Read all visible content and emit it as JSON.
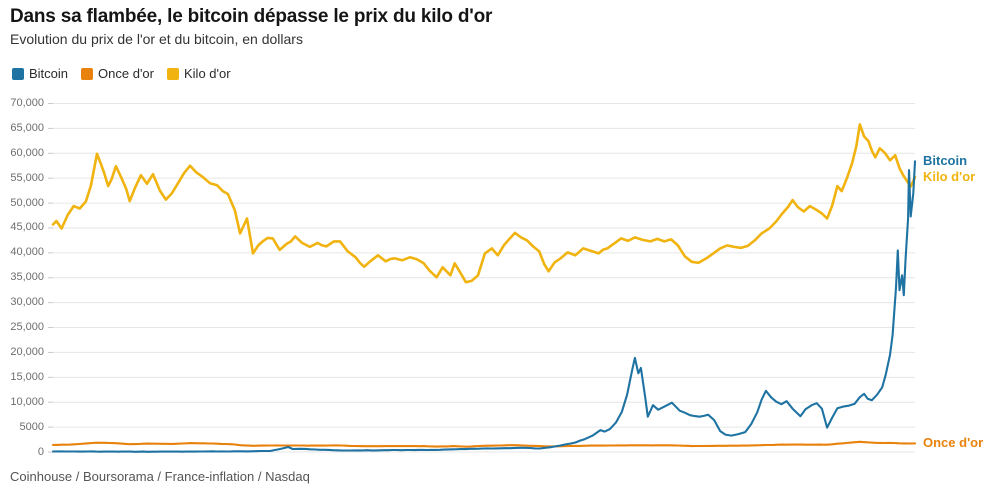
{
  "source": "Coinhouse / Boursorama / France-inflation / Nasdaq",
  "chart_data": {
    "type": "line",
    "title": "Dans sa flambée, le bitcoin dépasse le prix du kilo d'or",
    "subtitle": "Evolution du prix de l'or et du bitcoin, en dollars",
    "unit": "dollars",
    "legend_position": "top-left",
    "grid": "horizontal",
    "ylim": [
      0,
      70000
    ],
    "y_ticks": [
      {
        "value": 0,
        "label": "0"
      },
      {
        "value": 5000,
        "label": "5000"
      },
      {
        "value": 10000,
        "label": "10,000"
      },
      {
        "value": 15000,
        "label": "15,000"
      },
      {
        "value": 20000,
        "label": "20,000"
      },
      {
        "value": 25000,
        "label": "25,000"
      },
      {
        "value": 30000,
        "label": "30,000"
      },
      {
        "value": 35000,
        "label": "35,000"
      },
      {
        "value": 40000,
        "label": "40,000"
      },
      {
        "value": 45000,
        "label": "45,000"
      },
      {
        "value": 50000,
        "label": "50,000"
      },
      {
        "value": 55000,
        "label": "55,000"
      },
      {
        "value": 60000,
        "label": "60,000"
      },
      {
        "value": 65000,
        "label": "65,000"
      },
      {
        "value": 70000,
        "label": "70,000"
      }
    ],
    "x_axis_labels": [],
    "x_unit": "fraction of plotted time range (no x tick labels shown in chart)",
    "series": [
      {
        "name": "Bitcoin",
        "color": "#1f73a3",
        "end_value": 58400,
        "points": [
          [
            0.0,
            100
          ],
          [
            0.06,
            80
          ],
          [
            0.12,
            60
          ],
          [
            0.17,
            100
          ],
          [
            0.23,
            150
          ],
          [
            0.252,
            200
          ],
          [
            0.266,
            700
          ],
          [
            0.273,
            1000
          ],
          [
            0.278,
            600
          ],
          [
            0.287,
            650
          ],
          [
            0.31,
            450
          ],
          [
            0.345,
            300
          ],
          [
            0.379,
            350
          ],
          [
            0.414,
            400
          ],
          [
            0.449,
            450
          ],
          [
            0.484,
            650
          ],
          [
            0.519,
            750
          ],
          [
            0.542,
            850
          ],
          [
            0.565,
            700
          ],
          [
            0.582,
            1100
          ],
          [
            0.594,
            1500
          ],
          [
            0.606,
            1900
          ],
          [
            0.617,
            2600
          ],
          [
            0.626,
            3300
          ],
          [
            0.635,
            4400
          ],
          [
            0.64,
            4100
          ],
          [
            0.646,
            4600
          ],
          [
            0.653,
            5900
          ],
          [
            0.66,
            8100
          ],
          [
            0.666,
            11500
          ],
          [
            0.672,
            16600
          ],
          [
            0.675,
            18900
          ],
          [
            0.679,
            15800
          ],
          [
            0.682,
            16900
          ],
          [
            0.687,
            11000
          ],
          [
            0.69,
            7100
          ],
          [
            0.696,
            9400
          ],
          [
            0.702,
            8500
          ],
          [
            0.709,
            9100
          ],
          [
            0.718,
            9900
          ],
          [
            0.727,
            8300
          ],
          [
            0.739,
            7400
          ],
          [
            0.75,
            7100
          ],
          [
            0.76,
            7500
          ],
          [
            0.767,
            6400
          ],
          [
            0.774,
            4200
          ],
          [
            0.78,
            3500
          ],
          [
            0.787,
            3300
          ],
          [
            0.795,
            3600
          ],
          [
            0.803,
            4000
          ],
          [
            0.81,
            5600
          ],
          [
            0.817,
            8000
          ],
          [
            0.822,
            10500
          ],
          [
            0.827,
            12300
          ],
          [
            0.833,
            11000
          ],
          [
            0.839,
            10100
          ],
          [
            0.845,
            9600
          ],
          [
            0.851,
            10200
          ],
          [
            0.858,
            8700
          ],
          [
            0.867,
            7200
          ],
          [
            0.873,
            8600
          ],
          [
            0.88,
            9400
          ],
          [
            0.886,
            9800
          ],
          [
            0.892,
            8700
          ],
          [
            0.898,
            4900
          ],
          [
            0.904,
            6900
          ],
          [
            0.91,
            8800
          ],
          [
            0.916,
            9100
          ],
          [
            0.923,
            9300
          ],
          [
            0.93,
            9700
          ],
          [
            0.936,
            11000
          ],
          [
            0.941,
            11700
          ],
          [
            0.945,
            10700
          ],
          [
            0.95,
            10400
          ],
          [
            0.956,
            11500
          ],
          [
            0.962,
            13000
          ],
          [
            0.966,
            15500
          ],
          [
            0.971,
            19500
          ],
          [
            0.974,
            23500
          ],
          [
            0.978,
            33000
          ],
          [
            0.98,
            40500
          ],
          [
            0.982,
            32500
          ],
          [
            0.985,
            35500
          ],
          [
            0.987,
            31500
          ],
          [
            0.989,
            38500
          ],
          [
            0.992,
            47000
          ],
          [
            0.993,
            56600
          ],
          [
            0.995,
            47300
          ],
          [
            0.998,
            52000
          ],
          [
            1.0,
            58400
          ]
        ]
      },
      {
        "name": "Once d'or",
        "color": "#e8820c",
        "end_value": 1720,
        "points": [
          [
            0.0,
            1420
          ],
          [
            0.02,
            1480
          ],
          [
            0.051,
            1860
          ],
          [
            0.07,
            1790
          ],
          [
            0.089,
            1570
          ],
          [
            0.11,
            1680
          ],
          [
            0.14,
            1620
          ],
          [
            0.16,
            1790
          ],
          [
            0.19,
            1670
          ],
          [
            0.211,
            1510
          ],
          [
            0.217,
            1370
          ],
          [
            0.232,
            1240
          ],
          [
            0.26,
            1320
          ],
          [
            0.3,
            1280
          ],
          [
            0.33,
            1320
          ],
          [
            0.36,
            1160
          ],
          [
            0.4,
            1200
          ],
          [
            0.43,
            1180
          ],
          [
            0.445,
            1090
          ],
          [
            0.465,
            1180
          ],
          [
            0.479,
            1060
          ],
          [
            0.5,
            1240
          ],
          [
            0.536,
            1370
          ],
          [
            0.575,
            1130
          ],
          [
            0.62,
            1260
          ],
          [
            0.66,
            1330
          ],
          [
            0.675,
            1340
          ],
          [
            0.72,
            1330
          ],
          [
            0.741,
            1190
          ],
          [
            0.77,
            1240
          ],
          [
            0.806,
            1290
          ],
          [
            0.846,
            1490
          ],
          [
            0.898,
            1460
          ],
          [
            0.91,
            1660
          ],
          [
            0.936,
            2050
          ],
          [
            0.954,
            1840
          ],
          [
            0.97,
            1820
          ],
          [
            0.987,
            1720
          ],
          [
            1.0,
            1720
          ]
        ]
      },
      {
        "name": "Kilo d'or",
        "color": "#f0b30f",
        "end_value": 55200,
        "points": [
          [
            0.0,
            45700
          ],
          [
            0.004,
            46400
          ],
          [
            0.01,
            44900
          ],
          [
            0.017,
            47600
          ],
          [
            0.024,
            49400
          ],
          [
            0.031,
            48900
          ],
          [
            0.038,
            50300
          ],
          [
            0.044,
            53500
          ],
          [
            0.049,
            58000
          ],
          [
            0.051,
            59900
          ],
          [
            0.055,
            58100
          ],
          [
            0.059,
            56200
          ],
          [
            0.064,
            53400
          ],
          [
            0.068,
            54800
          ],
          [
            0.073,
            57400
          ],
          [
            0.079,
            55200
          ],
          [
            0.085,
            52800
          ],
          [
            0.089,
            50400
          ],
          [
            0.095,
            53000
          ],
          [
            0.102,
            55600
          ],
          [
            0.109,
            53900
          ],
          [
            0.116,
            55800
          ],
          [
            0.124,
            52500
          ],
          [
            0.131,
            50700
          ],
          [
            0.138,
            52000
          ],
          [
            0.145,
            54000
          ],
          [
            0.152,
            56000
          ],
          [
            0.159,
            57500
          ],
          [
            0.166,
            56200
          ],
          [
            0.174,
            55200
          ],
          [
            0.182,
            54000
          ],
          [
            0.19,
            53600
          ],
          [
            0.197,
            52400
          ],
          [
            0.203,
            51800
          ],
          [
            0.211,
            48500
          ],
          [
            0.217,
            43900
          ],
          [
            0.225,
            46900
          ],
          [
            0.232,
            39900
          ],
          [
            0.238,
            41500
          ],
          [
            0.244,
            42400
          ],
          [
            0.249,
            43000
          ],
          [
            0.255,
            42900
          ],
          [
            0.263,
            40600
          ],
          [
            0.271,
            41800
          ],
          [
            0.281,
            43300
          ],
          [
            0.289,
            42000
          ],
          [
            0.298,
            41200
          ],
          [
            0.307,
            42000
          ],
          [
            0.317,
            41300
          ],
          [
            0.326,
            42300
          ],
          [
            0.333,
            42300
          ],
          [
            0.342,
            40300
          ],
          [
            0.351,
            39100
          ],
          [
            0.361,
            37200
          ],
          [
            0.368,
            38300
          ],
          [
            0.377,
            39500
          ],
          [
            0.386,
            38300
          ],
          [
            0.396,
            38900
          ],
          [
            0.405,
            38500
          ],
          [
            0.414,
            39100
          ],
          [
            0.422,
            38700
          ],
          [
            0.43,
            37900
          ],
          [
            0.437,
            36400
          ],
          [
            0.445,
            35100
          ],
          [
            0.452,
            37100
          ],
          [
            0.461,
            35500
          ],
          [
            0.466,
            37900
          ],
          [
            0.473,
            35900
          ],
          [
            0.479,
            34100
          ],
          [
            0.486,
            34400
          ],
          [
            0.493,
            35500
          ],
          [
            0.501,
            39900
          ],
          [
            0.509,
            40900
          ],
          [
            0.516,
            39500
          ],
          [
            0.523,
            41500
          ],
          [
            0.529,
            42700
          ],
          [
            0.536,
            44000
          ],
          [
            0.543,
            43100
          ],
          [
            0.55,
            42500
          ],
          [
            0.557,
            41300
          ],
          [
            0.564,
            40300
          ],
          [
            0.57,
            37700
          ],
          [
            0.575,
            36300
          ],
          [
            0.582,
            38100
          ],
          [
            0.589,
            38900
          ],
          [
            0.597,
            40100
          ],
          [
            0.606,
            39500
          ],
          [
            0.615,
            40900
          ],
          [
            0.624,
            40400
          ],
          [
            0.633,
            39900
          ],
          [
            0.643,
            40900
          ],
          [
            0.651,
            41900
          ],
          [
            0.659,
            42900
          ],
          [
            0.667,
            42400
          ],
          [
            0.675,
            43100
          ],
          [
            0.684,
            42600
          ],
          [
            0.693,
            42300
          ],
          [
            0.701,
            42800
          ],
          [
            0.709,
            42300
          ],
          [
            0.717,
            42700
          ],
          [
            0.725,
            41500
          ],
          [
            0.733,
            39300
          ],
          [
            0.741,
            38200
          ],
          [
            0.749,
            38000
          ],
          [
            0.758,
            38900
          ],
          [
            0.766,
            39900
          ],
          [
            0.774,
            40900
          ],
          [
            0.782,
            41500
          ],
          [
            0.79,
            41200
          ],
          [
            0.798,
            41000
          ],
          [
            0.806,
            41400
          ],
          [
            0.814,
            42500
          ],
          [
            0.822,
            43900
          ],
          [
            0.831,
            44900
          ],
          [
            0.839,
            46300
          ],
          [
            0.846,
            47900
          ],
          [
            0.853,
            49300
          ],
          [
            0.858,
            50600
          ],
          [
            0.864,
            49200
          ],
          [
            0.871,
            48300
          ],
          [
            0.878,
            49400
          ],
          [
            0.885,
            48700
          ],
          [
            0.892,
            47900
          ],
          [
            0.898,
            46900
          ],
          [
            0.904,
            49500
          ],
          [
            0.91,
            53400
          ],
          [
            0.915,
            52400
          ],
          [
            0.921,
            55000
          ],
          [
            0.927,
            58000
          ],
          [
            0.932,
            61500
          ],
          [
            0.936,
            65800
          ],
          [
            0.941,
            63400
          ],
          [
            0.946,
            62400
          ],
          [
            0.95,
            60500
          ],
          [
            0.954,
            59200
          ],
          [
            0.959,
            61000
          ],
          [
            0.965,
            60100
          ],
          [
            0.971,
            58600
          ],
          [
            0.977,
            59600
          ],
          [
            0.982,
            57000
          ],
          [
            0.987,
            55400
          ],
          [
            0.992,
            54100
          ],
          [
            0.995,
            53300
          ],
          [
            1.0,
            55200
          ]
        ]
      }
    ]
  }
}
